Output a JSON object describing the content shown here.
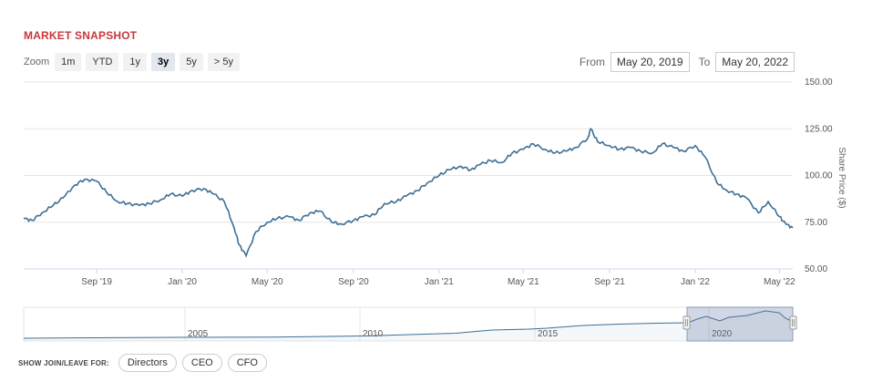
{
  "header": {
    "title": "MARKET SNAPSHOT"
  },
  "zoom": {
    "label": "Zoom",
    "buttons": [
      "1m",
      "YTD",
      "1y",
      "3y",
      "5y",
      "> 5y"
    ],
    "active": "3y"
  },
  "range": {
    "from_label": "From",
    "from_value": "May 20, 2019",
    "to_label": "To",
    "to_value": "May 20, 2022"
  },
  "footer": {
    "label": "SHOW JOIN/LEAVE FOR:",
    "buttons": [
      "Directors",
      "CEO",
      "CFO"
    ]
  },
  "colors": {
    "line": "#3d6f95",
    "title": "#c8373c",
    "navigator_mask": "#c5d1e3"
  },
  "chart_data": {
    "type": "line",
    "ylabel": "Share Price ($)",
    "ylim": [
      50,
      150
    ],
    "yticks": [
      "150.00",
      "125.00",
      "100.00",
      "75.00",
      "50.00"
    ],
    "xlim": [
      "2019-05-20",
      "2022-05-20"
    ],
    "xticks": [
      "Sep '19",
      "Jan '20",
      "May '20",
      "Sep '20",
      "Jan '21",
      "May '21",
      "Sep '21",
      "Jan '22",
      "May '22"
    ],
    "series": [
      {
        "x": [
          "2019-05-20",
          "2019-06-01",
          "2019-06-15",
          "2019-07-01",
          "2019-07-15",
          "2019-08-01",
          "2019-08-15",
          "2019-09-01",
          "2019-09-15",
          "2019-10-01",
          "2019-10-15",
          "2019-11-01",
          "2019-11-15",
          "2019-12-01",
          "2019-12-15",
          "2020-01-01",
          "2020-01-15",
          "2020-02-01",
          "2020-02-15",
          "2020-03-01",
          "2020-03-15",
          "2020-03-22",
          "2020-04-01",
          "2020-04-15",
          "2020-05-01",
          "2020-05-15",
          "2020-06-01",
          "2020-06-15",
          "2020-07-01",
          "2020-07-15",
          "2020-08-01",
          "2020-08-15",
          "2020-09-01",
          "2020-09-15",
          "2020-10-01",
          "2020-10-15",
          "2020-11-01",
          "2020-11-15",
          "2020-12-01",
          "2020-12-15",
          "2021-01-01",
          "2021-01-15",
          "2021-02-01",
          "2021-02-15",
          "2021-03-01",
          "2021-03-15",
          "2021-04-01",
          "2021-04-15",
          "2021-05-01",
          "2021-05-15",
          "2021-06-01",
          "2021-06-15",
          "2021-07-01",
          "2021-07-15",
          "2021-08-01",
          "2021-08-05",
          "2021-08-15",
          "2021-09-01",
          "2021-09-15",
          "2021-10-01",
          "2021-10-15",
          "2021-11-01",
          "2021-11-15",
          "2021-12-01",
          "2021-12-15",
          "2022-01-01",
          "2022-01-15",
          "2022-02-01",
          "2022-02-15",
          "2022-03-01",
          "2022-03-15",
          "2022-04-01",
          "2022-04-15",
          "2022-05-01",
          "2022-05-10",
          "2022-05-20"
        ],
        "y": [
          77,
          76,
          80,
          84,
          88,
          95,
          98,
          97,
          91,
          86,
          85,
          84,
          85,
          87,
          90,
          89,
          92,
          93,
          90,
          86,
          72,
          63,
          57,
          70,
          75,
          77,
          78,
          76,
          80,
          81,
          75,
          74,
          76,
          78,
          79,
          85,
          86,
          89,
          92,
          96,
          100,
          103,
          105,
          103,
          106,
          108,
          107,
          112,
          114,
          117,
          114,
          112,
          113,
          115,
          120,
          125,
          118,
          116,
          114,
          115,
          113,
          112,
          117,
          115,
          113,
          116,
          110,
          96,
          92,
          90,
          88,
          80,
          86,
          78,
          74,
          72
        ]
      }
    ]
  }
}
